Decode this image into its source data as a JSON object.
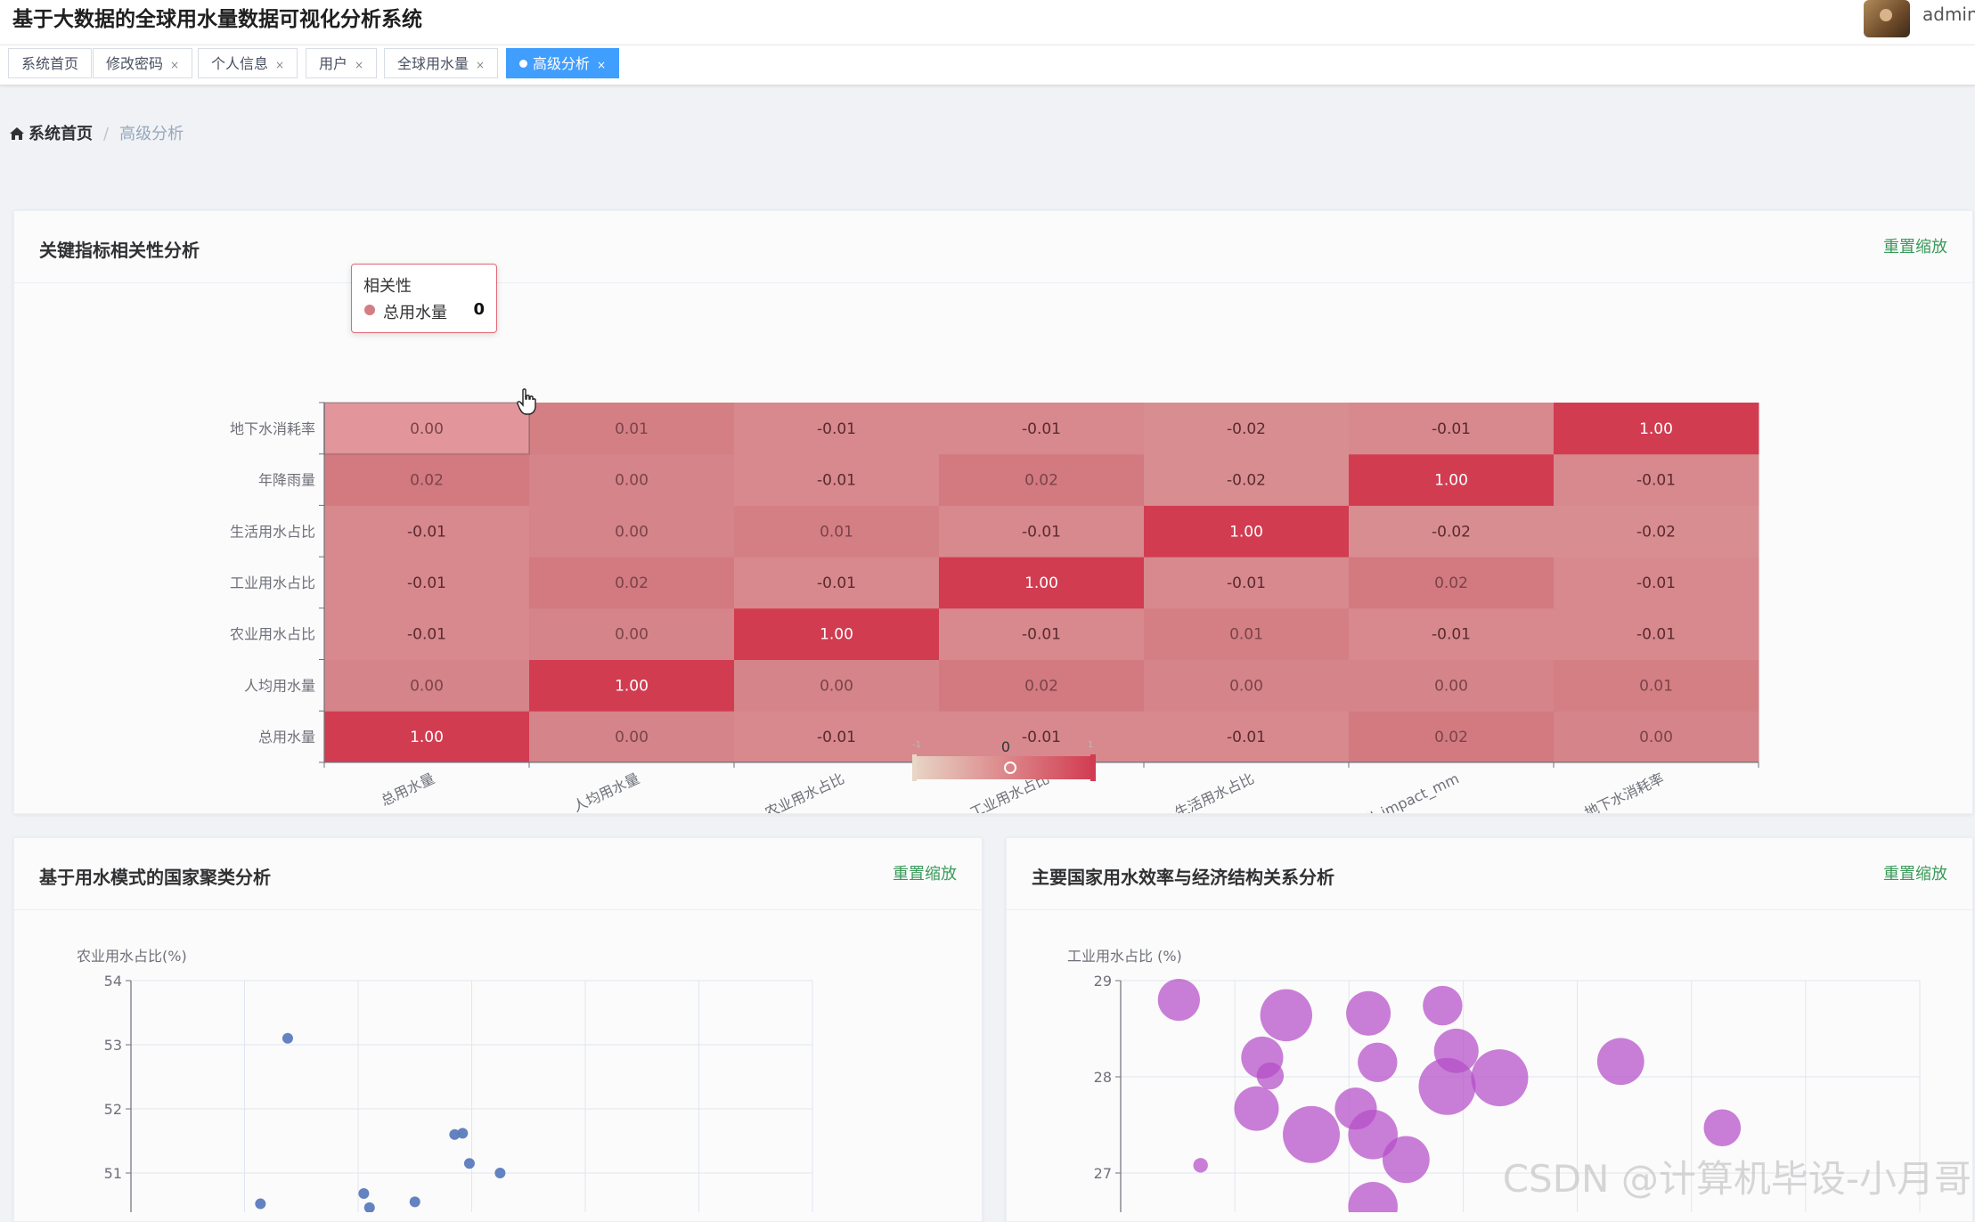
{
  "app": {
    "title": "基于大数据的全球用水量数据可视化分析系统",
    "username": "admin"
  },
  "tags": [
    {
      "label": "系统首页",
      "closable": false,
      "active": false
    },
    {
      "label": "修改密码",
      "closable": true,
      "active": false
    },
    {
      "label": "个人信息",
      "closable": true,
      "active": false
    },
    {
      "label": "用户",
      "closable": true,
      "active": false
    },
    {
      "label": "全球用水量",
      "closable": true,
      "active": false
    },
    {
      "label": "高级分析",
      "closable": true,
      "active": true
    }
  ],
  "close_glyph": "×",
  "breadcrumb": {
    "home": "系统首页",
    "current": "高级分析"
  },
  "reset_zoom_label": "重置缩放",
  "cards": {
    "correlation": {
      "title": "关键指标相关性分析"
    },
    "cluster": {
      "title": "基于用水模式的国家聚类分析"
    },
    "efficiency": {
      "title": "主要国家用水效率与经济结构关系分析"
    }
  },
  "tooltip": {
    "title": "相关性",
    "name": "总用水量",
    "value": "0"
  },
  "visual_map": {
    "low": "-1",
    "high": "1",
    "value": "0"
  },
  "colors": {
    "accent": "#409eff",
    "heat_low": "#e8d6c6",
    "heat_mid": "#d47e84",
    "heat_high": "#d13c51",
    "cluster_point": "#5b7bbd",
    "bubble": "#b44ec8",
    "reset": "#3a9a5a"
  },
  "chart_data": [
    {
      "type": "heatmap",
      "title": "关键指标相关性分析",
      "x_categories": [
        "总用水量",
        "人均用水量",
        "农业用水占比",
        "工业用水占比",
        "生活用水占比",
        "rainfall_impact_mm",
        "地下水消耗率"
      ],
      "y_categories": [
        "总用水量",
        "人均用水量",
        "农业用水占比",
        "工业用水占比",
        "生活用水占比",
        "年降雨量",
        "地下水消耗率"
      ],
      "values": [
        [
          "1.00",
          "0.00",
          "-0.01",
          "-0.01",
          "-0.01",
          "0.02",
          "0.00"
        ],
        [
          "0.00",
          "1.00",
          "0.00",
          "0.02",
          "0.00",
          "0.00",
          "0.01"
        ],
        [
          "-0.01",
          "0.00",
          "1.00",
          "-0.01",
          "0.01",
          "-0.01",
          "-0.01"
        ],
        [
          "-0.01",
          "0.02",
          "-0.01",
          "1.00",
          "-0.01",
          "0.02",
          "-0.01"
        ],
        [
          "-0.01",
          "0.00",
          "0.01",
          "-0.01",
          "1.00",
          "-0.02",
          "-0.02"
        ],
        [
          "0.02",
          "0.00",
          "-0.01",
          "0.02",
          "-0.02",
          "1.00",
          "-0.01"
        ],
        [
          "0.00",
          "0.01",
          "-0.01",
          "-0.01",
          "-0.02",
          "-0.01",
          "1.00"
        ]
      ],
      "range": [
        -1,
        1
      ]
    },
    {
      "type": "scatter",
      "title": "基于用水模式的国家聚类分析",
      "ylabel": "农业用水占比(%)",
      "yticks": [
        "54",
        "53",
        "52",
        "51"
      ],
      "ylim": [
        50.45,
        54
      ],
      "xlim": [
        0,
        6
      ],
      "points": [
        {
          "x": 1.38,
          "y": 53.1
        },
        {
          "x": 2.85,
          "y": 51.6
        },
        {
          "x": 2.92,
          "y": 51.62
        },
        {
          "x": 2.98,
          "y": 51.15
        },
        {
          "x": 3.25,
          "y": 51.0
        },
        {
          "x": 2.05,
          "y": 50.68
        },
        {
          "x": 1.14,
          "y": 50.52
        },
        {
          "x": 2.5,
          "y": 50.55
        },
        {
          "x": 2.1,
          "y": 50.46
        }
      ]
    },
    {
      "type": "scatter",
      "title": "主要国家用水效率与经济结构关系分析",
      "ylabel": "工业用水占比 (%)",
      "yticks": [
        "29",
        "28",
        "27"
      ],
      "ylim": [
        26.6,
        29
      ],
      "xlim": [
        0,
        7
      ],
      "points": [
        {
          "x": 0.51,
          "y": 28.8,
          "size": 0.7
        },
        {
          "x": 1.45,
          "y": 28.64,
          "size": 0.9
        },
        {
          "x": 2.17,
          "y": 28.66,
          "size": 0.75
        },
        {
          "x": 2.82,
          "y": 28.74,
          "size": 0.65
        },
        {
          "x": 1.24,
          "y": 28.2,
          "size": 0.7
        },
        {
          "x": 2.25,
          "y": 28.15,
          "size": 0.65
        },
        {
          "x": 2.94,
          "y": 28.27,
          "size": 0.75
        },
        {
          "x": 3.32,
          "y": 27.99,
          "size": 1.0
        },
        {
          "x": 2.86,
          "y": 27.9,
          "size": 1.0
        },
        {
          "x": 1.31,
          "y": 28.01,
          "size": 0.4
        },
        {
          "x": 4.38,
          "y": 28.16,
          "size": 0.8
        },
        {
          "x": 1.19,
          "y": 27.67,
          "size": 0.75
        },
        {
          "x": 2.06,
          "y": 27.67,
          "size": 0.7
        },
        {
          "x": 1.67,
          "y": 27.4,
          "size": 1.0
        },
        {
          "x": 2.21,
          "y": 27.4,
          "size": 0.85
        },
        {
          "x": 2.5,
          "y": 27.14,
          "size": 0.8
        },
        {
          "x": 5.27,
          "y": 27.47,
          "size": 0.6
        },
        {
          "x": 0.7,
          "y": 27.08,
          "size": 0.15
        },
        {
          "x": 2.21,
          "y": 26.65,
          "size": 0.85
        }
      ]
    }
  ]
}
